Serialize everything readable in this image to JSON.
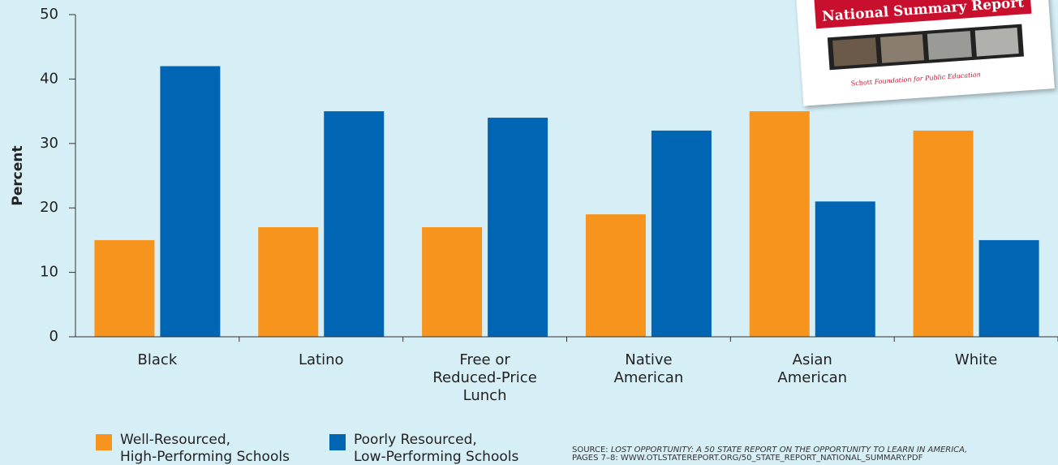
{
  "chart_data": {
    "type": "bar",
    "y_label": "Percent",
    "categories": [
      "Black",
      "Latino",
      "Free or\nReduced-Price\nLunch",
      "Native\nAmerican",
      "Asian\nAmerican",
      "White"
    ],
    "series": [
      {
        "name": "Well-Resourced,\nHigh-Performing Schools",
        "color": "#f7941d",
        "values": [
          15,
          17,
          17,
          19,
          35,
          32
        ]
      },
      {
        "name": "Poorly Resourced,\nLow-Performing Schools",
        "color": "#0066b3",
        "values": [
          42,
          35,
          34,
          32,
          21,
          15
        ]
      }
    ],
    "ylim": [
      0,
      50
    ],
    "yticks": [
      0,
      10,
      20,
      30,
      40,
      50
    ],
    "grid": false,
    "source": {
      "label": "SOURCE:",
      "title": "LOST OPPORTUNITY: A 50 STATE REPORT ON THE OPPORTUNITY TO LEARN IN AMERICA,",
      "detail": "PAGES 7–8: WWW.OTLSTATEREPORT.ORG/50_STATE_REPORT_NATIONAL_SUMMARY.PDF"
    },
    "cover": {
      "title": "National Summary Report",
      "brand": "Schott",
      "foundation": "Foundation for Public Education"
    }
  }
}
